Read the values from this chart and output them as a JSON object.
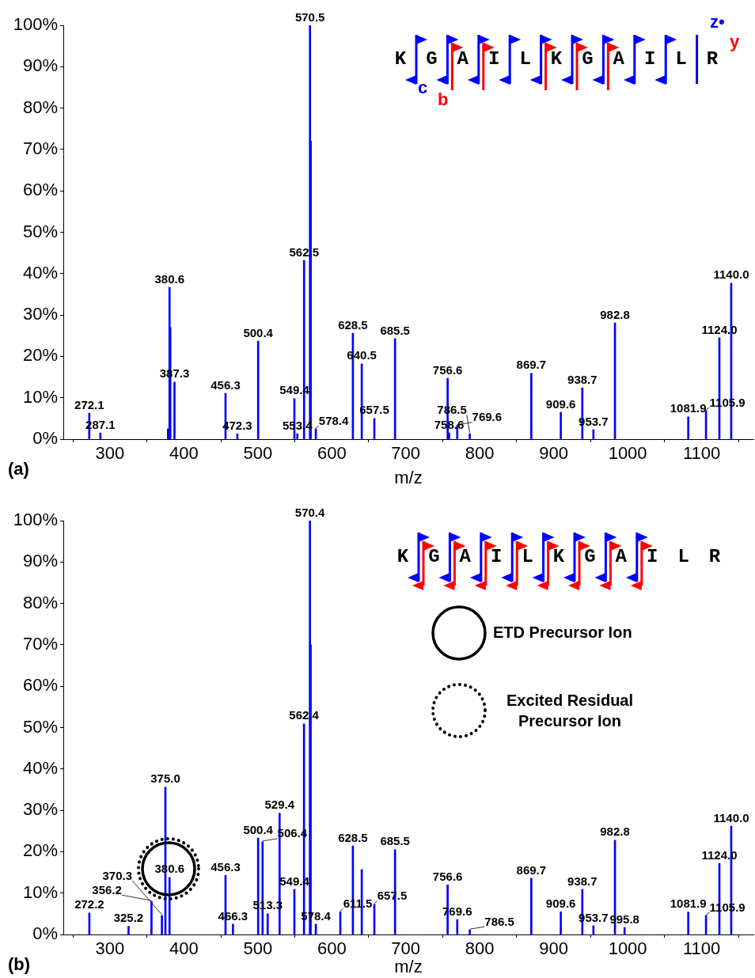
{
  "chart_data": [
    {
      "type": "bar",
      "xlabel": "m/z",
      "color": "#0000ff",
      "x": [
        272.1,
        287.1,
        378.6,
        380.6,
        381.6,
        387.3,
        456.3,
        472.3,
        500.4,
        549.4,
        553.4,
        562.5,
        570.5,
        571.5,
        578.4,
        628.5,
        640.5,
        657.5,
        685.5,
        756.6,
        758.6,
        769.6,
        786.5,
        869.7,
        909.6,
        938.7,
        953.7,
        982.8,
        1081.9,
        1105.9,
        1124.0,
        1140.0
      ],
      "values": [
        6.3,
        1.5,
        2.5,
        36.7,
        27,
        13.8,
        11.1,
        1.3,
        23.7,
        9.8,
        1.3,
        43.2,
        100,
        72,
        2.5,
        25.6,
        18.2,
        5.0,
        24.3,
        14.7,
        1.5,
        3.3,
        1.3,
        15.9,
        6.5,
        12.4,
        2.3,
        28.1,
        5.4,
        6.9,
        24.5,
        37.7
      ],
      "xlim": [
        237,
        1170
      ],
      "xticks": [
        300,
        400,
        500,
        600,
        700,
        800,
        900,
        1000,
        1100
      ],
      "ylim": [
        0,
        100
      ],
      "yticks": [
        {
          "value": 0,
          "label": "0%"
        },
        {
          "value": 10,
          "label": "10%"
        },
        {
          "value": 20,
          "label": "20%"
        },
        {
          "value": 30,
          "label": "30%"
        },
        {
          "value": 40,
          "label": "40%"
        },
        {
          "value": 50,
          "label": "50%"
        },
        {
          "value": 60,
          "label": "60%"
        },
        {
          "value": 70,
          "label": "70%"
        },
        {
          "value": 80,
          "label": "80%"
        },
        {
          "value": 90,
          "label": "90%"
        },
        {
          "value": 100,
          "label": "100%"
        }
      ],
      "grid": false,
      "legend": false,
      "annotations": [
        "(a)",
        "K G A I L K G A I L R",
        "c",
        "b",
        "z•",
        "y",
        {
          "text": "272.1",
          "x": 272.1,
          "y": 6.3
        },
        {
          "text": "287.1",
          "x": 287.1,
          "y": 1.5
        },
        {
          "text": "380.6",
          "x": 380.6,
          "y": 36.7
        },
        {
          "text": "387.3",
          "x": 387.3,
          "y": 13.8
        },
        {
          "text": "456.3",
          "x": 456.3,
          "y": 11.1
        },
        {
          "text": "472.3",
          "x": 472.3,
          "y": 1.3
        },
        {
          "text": "500.4",
          "x": 500.4,
          "y": 23.7
        },
        {
          "text": "549.4",
          "x": 549.4,
          "y": 9.8
        },
        {
          "text": "553.4",
          "x": 553.4,
          "y": 1.3
        },
        {
          "text": "562.5",
          "x": 562.5,
          "y": 43.2
        },
        {
          "text": "570.5",
          "x": 570.5,
          "y": 100
        },
        {
          "text": "578.4",
          "x": 578.4,
          "y": 2.5
        },
        {
          "text": "628.5",
          "x": 628.5,
          "y": 25.6
        },
        {
          "text": "640.5",
          "x": 640.5,
          "y": 18.2
        },
        {
          "text": "657.5",
          "x": 657.5,
          "y": 5.0
        },
        {
          "text": "685.5",
          "x": 685.5,
          "y": 24.3
        },
        {
          "text": "756.6",
          "x": 756.6,
          "y": 14.7
        },
        {
          "text": "758.6",
          "x": 758.6,
          "y": 1.5
        },
        {
          "text": "769.6",
          "x": 769.6,
          "y": 3.3
        },
        {
          "text": "786.5",
          "x": 786.5,
          "y": 1.3
        },
        {
          "text": "869.7",
          "x": 869.7,
          "y": 15.9
        },
        {
          "text": "909.6",
          "x": 909.6,
          "y": 6.5
        },
        {
          "text": "938.7",
          "x": 938.7,
          "y": 12.4
        },
        {
          "text": "953.7",
          "x": 953.7,
          "y": 2.3
        },
        {
          "text": "982.8",
          "x": 982.8,
          "y": 28.1
        },
        {
          "text": "1081.9",
          "x": 1081.9,
          "y": 5.4
        },
        {
          "text": "1105.9",
          "x": 1105.9,
          "y": 6.9
        },
        {
          "text": "1124.0",
          "x": 1124.0,
          "y": 24.5
        },
        {
          "text": "1140.0",
          "x": 1140.0,
          "y": 37.7
        }
      ]
    },
    {
      "type": "bar",
      "xlabel": "m/z",
      "color": "#0000ff",
      "x": [
        272.2,
        325.2,
        356.2,
        370.3,
        375.0,
        380.6,
        456.3,
        466.3,
        500.4,
        506.4,
        513.3,
        529.4,
        549.4,
        562.4,
        570.4,
        571.4,
        578.4,
        611.5,
        628.5,
        640.5,
        657.5,
        685.5,
        756.6,
        769.6,
        786.5,
        869.7,
        909.6,
        938.7,
        953.7,
        982.8,
        995.8,
        1081.9,
        1105.9,
        1124.0,
        1140.0
      ],
      "values": [
        5.2,
        2.0,
        8.0,
        4.6,
        35.6,
        13.8,
        14.3,
        2.5,
        23.3,
        22.4,
        5.0,
        29.3,
        10.9,
        50.9,
        100,
        70,
        2.5,
        5.5,
        21.4,
        15.7,
        7.3,
        20.5,
        12.0,
        3.6,
        1.1,
        13.6,
        5.5,
        10.9,
        2.1,
        22.8,
        1.7,
        5.4,
        4.6,
        17.2,
        26.2
      ],
      "xlim": [
        237,
        1170
      ],
      "xticks": [
        300,
        400,
        500,
        600,
        700,
        800,
        900,
        1000,
        1100
      ],
      "ylim": [
        0,
        100
      ],
      "yticks": [
        {
          "value": 0,
          "label": "0%"
        },
        {
          "value": 10,
          "label": "10%"
        },
        {
          "value": 20,
          "label": "20%"
        },
        {
          "value": 30,
          "label": "30%"
        },
        {
          "value": 40,
          "label": "40%"
        },
        {
          "value": 50,
          "label": "50%"
        },
        {
          "value": 60,
          "label": "60%"
        },
        {
          "value": 70,
          "label": "70%"
        },
        {
          "value": 80,
          "label": "80%"
        },
        {
          "value": 90,
          "label": "90%"
        },
        {
          "value": 100,
          "label": "100%"
        }
      ],
      "grid": false,
      "legend": false,
      "annotations": [
        "(b)",
        "K G A I L K G A I L R",
        "ETD Precursor Ion",
        "Excited Residual Precursor Ion",
        {
          "text": "272.2",
          "x": 272.2,
          "y": 5.2
        },
        {
          "text": "325.2",
          "x": 325.2,
          "y": 2.0
        },
        {
          "text": "356.2",
          "x": 356.2,
          "y": 8.0
        },
        {
          "text": "370.3",
          "x": 370.3,
          "y": 4.6
        },
        {
          "text": "375.0",
          "x": 375.0,
          "y": 35.6
        },
        {
          "text": "380.6",
          "x": 380.6,
          "y": 13.8
        },
        {
          "text": "456.3",
          "x": 456.3,
          "y": 14.3
        },
        {
          "text": "466.3",
          "x": 466.3,
          "y": 2.5
        },
        {
          "text": "500.4",
          "x": 500.4,
          "y": 23.3
        },
        {
          "text": "506.4",
          "x": 506.4,
          "y": 22.4
        },
        {
          "text": "513.3",
          "x": 513.3,
          "y": 5.0
        },
        {
          "text": "529.4",
          "x": 529.4,
          "y": 29.3
        },
        {
          "text": "549.4",
          "x": 549.4,
          "y": 10.9
        },
        {
          "text": "562.4",
          "x": 562.4,
          "y": 50.9
        },
        {
          "text": "570.4",
          "x": 570.4,
          "y": 100
        },
        {
          "text": "578.4",
          "x": 578.4,
          "y": 2.5
        },
        {
          "text": "611.5",
          "x": 611.5,
          "y": 5.5
        },
        {
          "text": "628.5",
          "x": 628.5,
          "y": 21.4
        },
        {
          "text": "657.5",
          "x": 657.5,
          "y": 7.3
        },
        {
          "text": "685.5",
          "x": 685.5,
          "y": 20.5
        },
        {
          "text": "756.6",
          "x": 756.6,
          "y": 12.0
        },
        {
          "text": "769.6",
          "x": 769.6,
          "y": 3.6
        },
        {
          "text": "786.5",
          "x": 786.5,
          "y": 1.1
        },
        {
          "text": "869.7",
          "x": 869.7,
          "y": 13.6
        },
        {
          "text": "909.6",
          "x": 909.6,
          "y": 5.5
        },
        {
          "text": "938.7",
          "x": 938.7,
          "y": 10.9
        },
        {
          "text": "953.7",
          "x": 953.7,
          "y": 2.1
        },
        {
          "text": "982.8",
          "x": 982.8,
          "y": 22.8
        },
        {
          "text": "995.8",
          "x": 995.8,
          "y": 1.7
        },
        {
          "text": "1081.9",
          "x": 1081.9,
          "y": 5.4
        },
        {
          "text": "1105.9",
          "x": 1105.9,
          "y": 4.6
        },
        {
          "text": "1124.0",
          "x": 1124.0,
          "y": 17.2
        },
        {
          "text": "1140.0",
          "x": 1140.0,
          "y": 26.2
        }
      ]
    }
  ]
}
